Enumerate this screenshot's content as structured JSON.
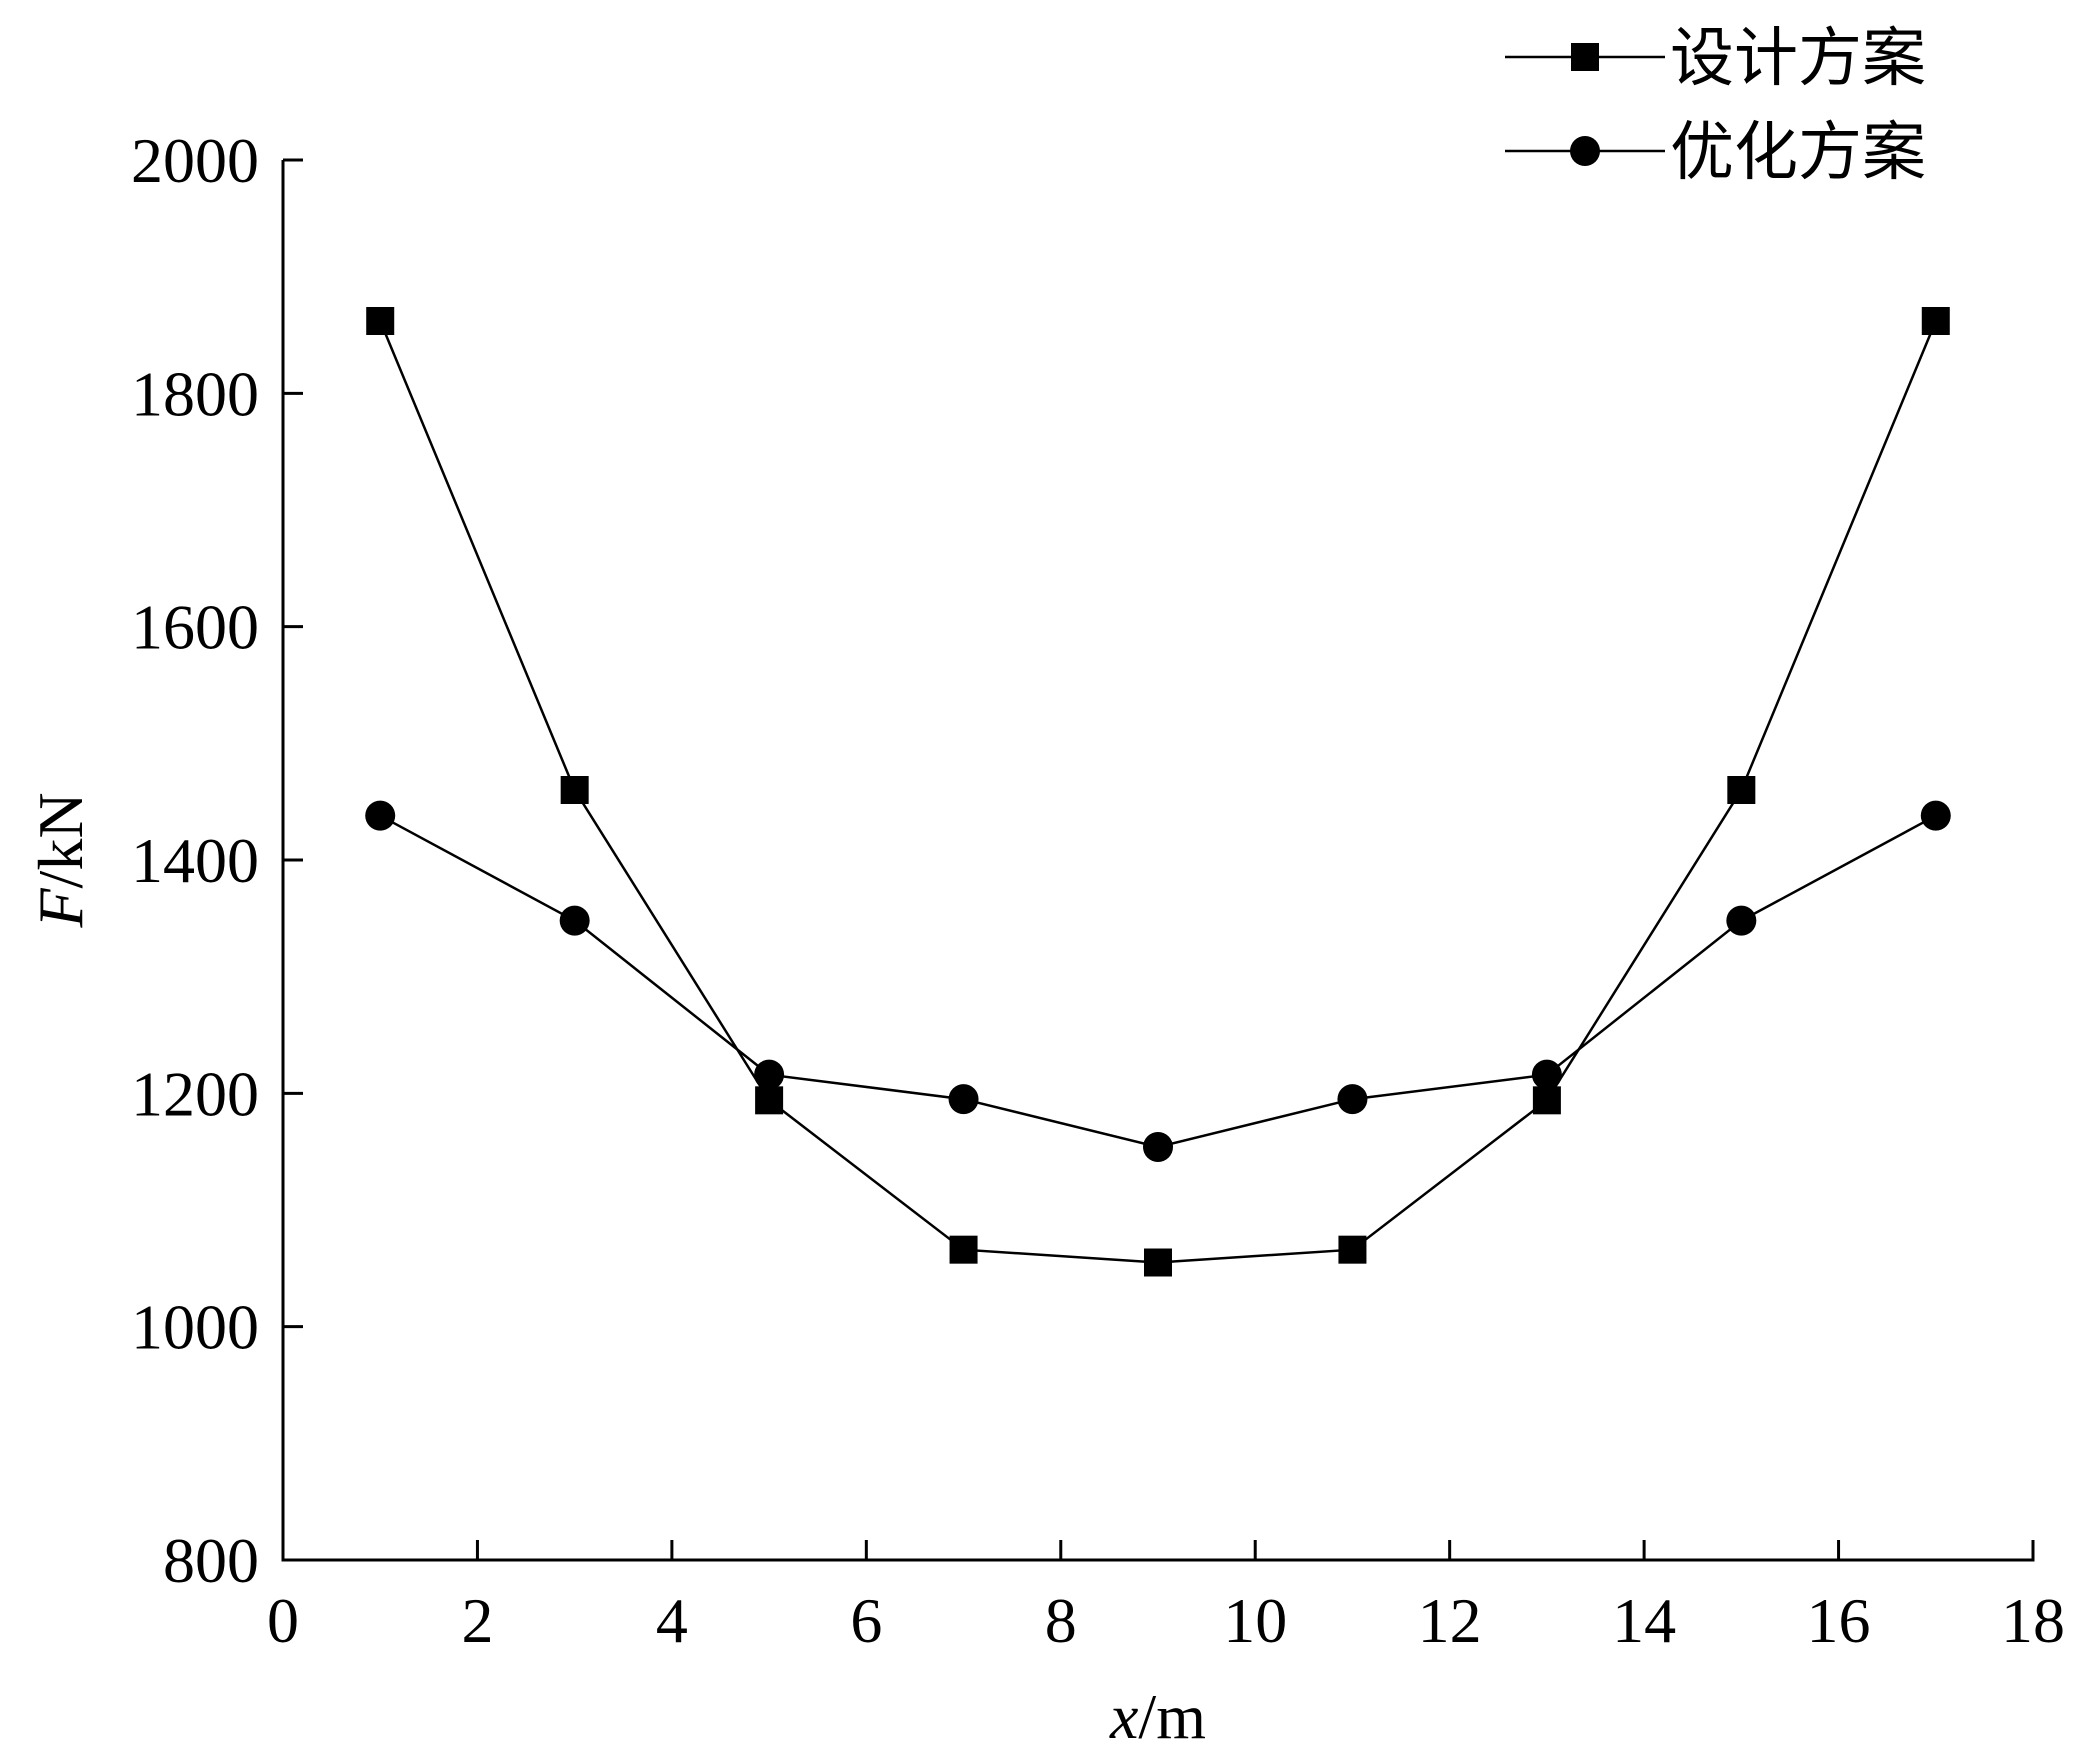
{
  "chart_data": {
    "type": "line",
    "x": [
      1,
      3,
      5,
      7,
      9,
      11,
      13,
      15,
      17
    ],
    "series": [
      {
        "name": "设计方案",
        "marker": "square",
        "values": [
          1862,
          1460,
          1194,
          1066,
          1055,
          1066,
          1194,
          1460,
          1862
        ]
      },
      {
        "name": "优化方案",
        "marker": "circle",
        "values": [
          1438,
          1348,
          1216,
          1195,
          1154,
          1195,
          1216,
          1348,
          1438
        ]
      }
    ],
    "xlabel_var": "x",
    "xlabel_unit": "/m",
    "ylabel_var": "F",
    "ylabel_unit": "/kN",
    "xlim": [
      0,
      18
    ],
    "ylim": [
      800,
      2000
    ],
    "xticks": [
      "0",
      "2",
      "4",
      "6",
      "8",
      "10",
      "12",
      "14",
      "16",
      "18"
    ],
    "yticks": [
      "800",
      "1000",
      "1200",
      "1400",
      "1600",
      "1800",
      "2000"
    ],
    "grid": false,
    "legend_position": "top-right"
  },
  "colors": {
    "line": "#000000",
    "marker": "#000000",
    "background": "#ffffff"
  }
}
